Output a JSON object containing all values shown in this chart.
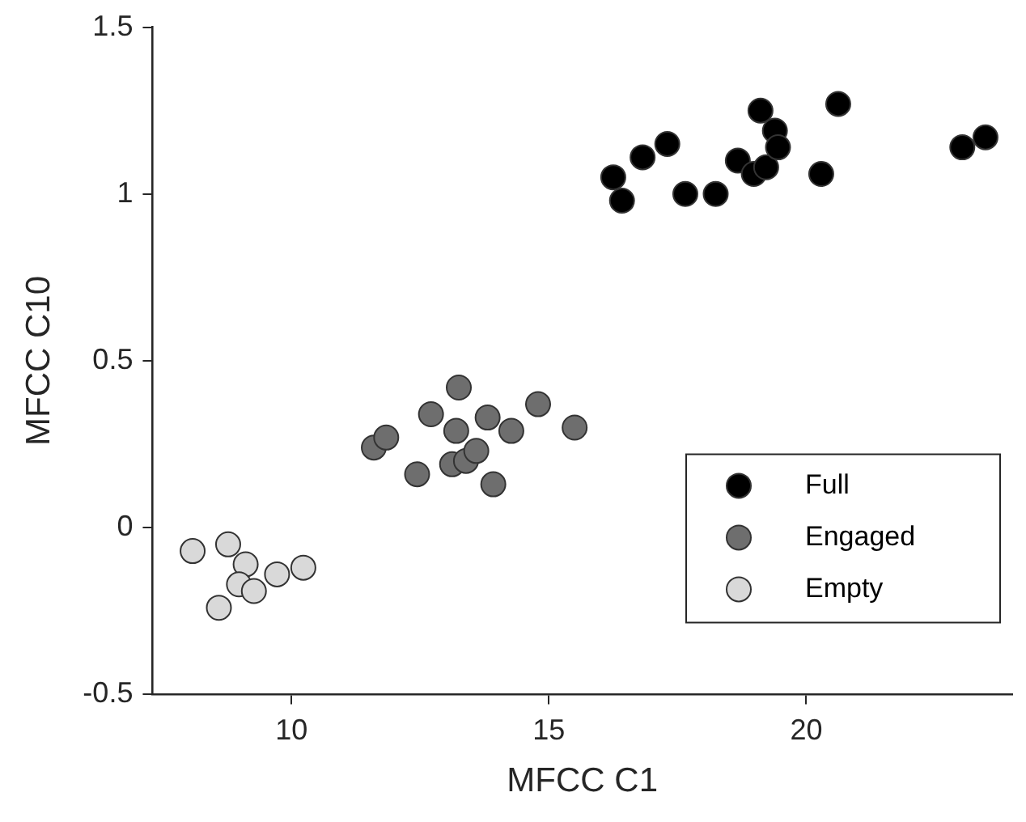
{
  "chart_data": {
    "type": "scatter",
    "xlabel": "MFCC C1",
    "ylabel": "MFCC C10",
    "xlim": [
      7.3,
      24
    ],
    "xticks": [
      10,
      15,
      20
    ],
    "ylim": [
      -0.5,
      1.5
    ],
    "yticks": [
      -0.5,
      0,
      0.5,
      1,
      1.5
    ],
    "grid": false,
    "legend": "bottom right",
    "marker": "circle",
    "series": [
      {
        "name": "Full",
        "color": "#000000",
        "x": [
          16.25,
          16.42,
          16.82,
          17.3,
          17.65,
          18.24,
          18.67,
          18.98,
          19.22,
          19.11,
          19.39,
          19.45,
          20.29,
          20.62,
          23.03,
          23.48
        ],
        "values": [
          1.05,
          0.98,
          1.11,
          1.15,
          1.0,
          1.0,
          1.1,
          1.06,
          1.08,
          1.25,
          1.19,
          1.14,
          1.06,
          1.27,
          1.14,
          1.17
        ]
      },
      {
        "name": "Engaged",
        "color": "#6e6e6e",
        "x": [
          11.6,
          11.84,
          12.44,
          12.71,
          13.25,
          13.2,
          13.12,
          13.39,
          13.59,
          13.81,
          13.92,
          14.27,
          14.79,
          15.5
        ],
        "values": [
          0.24,
          0.27,
          0.16,
          0.34,
          0.42,
          0.29,
          0.19,
          0.2,
          0.23,
          0.33,
          0.13,
          0.29,
          0.37,
          0.3
        ]
      },
      {
        "name": "Empty",
        "color": "#d9d9d9",
        "x": [
          8.08,
          8.77,
          9.11,
          8.98,
          9.27,
          9.72,
          10.23,
          8.59
        ],
        "values": [
          -0.07,
          -0.05,
          -0.11,
          -0.17,
          -0.19,
          -0.14,
          -0.12,
          -0.24
        ]
      }
    ]
  }
}
